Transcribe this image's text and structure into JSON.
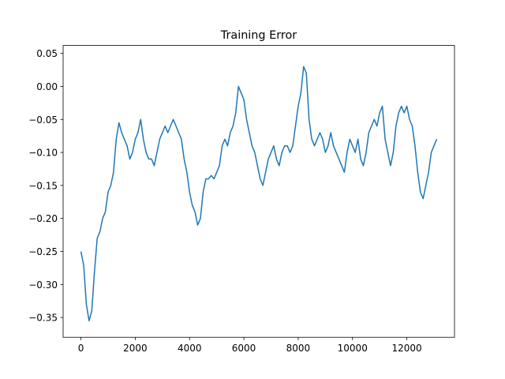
{
  "chart_data": {
    "type": "line",
    "title": "Training Error",
    "x": [
      0,
      100,
      200,
      300,
      400,
      500,
      600,
      700,
      800,
      900,
      1000,
      1100,
      1200,
      1300,
      1400,
      1500,
      1600,
      1700,
      1800,
      1900,
      2000,
      2100,
      2200,
      2300,
      2400,
      2500,
      2600,
      2700,
      2800,
      2900,
      3000,
      3100,
      3200,
      3300,
      3400,
      3500,
      3600,
      3700,
      3800,
      3900,
      4000,
      4100,
      4200,
      4300,
      4400,
      4500,
      4600,
      4700,
      4800,
      4900,
      5000,
      5100,
      5200,
      5300,
      5400,
      5500,
      5600,
      5700,
      5800,
      5900,
      6000,
      6100,
      6200,
      6300,
      6400,
      6500,
      6600,
      6700,
      6800,
      6900,
      7000,
      7100,
      7200,
      7300,
      7400,
      7500,
      7600,
      7700,
      7800,
      7900,
      8000,
      8100,
      8200,
      8300,
      8400,
      8500,
      8600,
      8700,
      8800,
      8900,
      9000,
      9100,
      9200,
      9300,
      9400,
      9500,
      9600,
      9700,
      9800,
      9900,
      10000,
      10100,
      10200,
      10300,
      10400,
      10500,
      10600,
      10700,
      10800,
      10900,
      11000,
      11100,
      11200,
      11300,
      11400,
      11500,
      11600,
      11700,
      11800,
      11900,
      12000,
      12100,
      12200,
      12300,
      12400,
      12500,
      12600,
      12700,
      12800,
      12900,
      13000,
      13100
    ],
    "series": [
      {
        "color": "#1f77b4",
        "values": [
          -0.25,
          -0.27,
          -0.33,
          -0.355,
          -0.34,
          -0.28,
          -0.23,
          -0.22,
          -0.2,
          -0.19,
          -0.16,
          -0.15,
          -0.13,
          -0.08,
          -0.055,
          -0.07,
          -0.08,
          -0.09,
          -0.11,
          -0.1,
          -0.08,
          -0.07,
          -0.05,
          -0.08,
          -0.1,
          -0.11,
          -0.11,
          -0.12,
          -0.1,
          -0.08,
          -0.07,
          -0.06,
          -0.07,
          -0.06,
          -0.05,
          -0.06,
          -0.07,
          -0.08,
          -0.11,
          -0.13,
          -0.16,
          -0.18,
          -0.19,
          -0.21,
          -0.2,
          -0.16,
          -0.14,
          -0.14,
          -0.135,
          -0.14,
          -0.13,
          -0.12,
          -0.09,
          -0.08,
          -0.09,
          -0.07,
          -0.06,
          -0.04,
          0.0,
          -0.01,
          -0.02,
          -0.05,
          -0.07,
          -0.09,
          -0.1,
          -0.12,
          -0.14,
          -0.15,
          -0.13,
          -0.11,
          -0.1,
          -0.09,
          -0.11,
          -0.12,
          -0.1,
          -0.09,
          -0.09,
          -0.1,
          -0.09,
          -0.06,
          -0.03,
          -0.01,
          0.03,
          0.02,
          -0.05,
          -0.08,
          -0.09,
          -0.08,
          -0.07,
          -0.08,
          -0.1,
          -0.09,
          -0.07,
          -0.09,
          -0.1,
          -0.11,
          -0.12,
          -0.13,
          -0.1,
          -0.08,
          -0.09,
          -0.1,
          -0.08,
          -0.11,
          -0.12,
          -0.1,
          -0.07,
          -0.06,
          -0.05,
          -0.06,
          -0.04,
          -0.03,
          -0.08,
          -0.1,
          -0.12,
          -0.1,
          -0.06,
          -0.04,
          -0.03,
          -0.04,
          -0.03,
          -0.05,
          -0.06,
          -0.09,
          -0.13,
          -0.16,
          -0.17,
          -0.15,
          -0.13,
          -0.1,
          -0.09,
          -0.08
        ]
      }
    ],
    "xlim": [
      -655,
      13755
    ],
    "ylim": [
      -0.38,
      0.062
    ],
    "xticks": [
      0,
      2000,
      4000,
      6000,
      8000,
      10000,
      12000
    ],
    "yticks": [
      {
        "value": -0.35,
        "label": "−0.35"
      },
      {
        "value": -0.3,
        "label": "−0.30"
      },
      {
        "value": -0.25,
        "label": "−0.25"
      },
      {
        "value": -0.2,
        "label": "−0.20"
      },
      {
        "value": -0.15,
        "label": "−0.15"
      },
      {
        "value": -0.1,
        "label": "−0.10"
      },
      {
        "value": -0.05,
        "label": "−0.05"
      },
      {
        "value": 0,
        "label": "0.00"
      },
      0.05
    ]
  }
}
